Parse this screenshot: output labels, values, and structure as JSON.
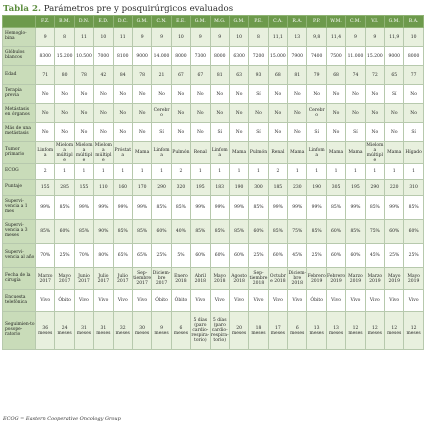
{
  "title": {
    "label": "Tabla 2.",
    "text": "Parámetros pre y posquirúrgicos evaluados"
  },
  "table": {
    "patients": [
      "F.Z.",
      "B.M.",
      "D.N.",
      "E.D.",
      "D.C.",
      "G.M.",
      "C.N.",
      "E.E.",
      "G.M.",
      "M.G.",
      "G.M.",
      "P.E.",
      "C.A.",
      "R.A.",
      "P.P.",
      "W.M.",
      "C.M.",
      "V.I.",
      "G.M.",
      "B.A."
    ],
    "rows": [
      {
        "label": "Hemoglo-bina",
        "height": 19,
        "values": [
          "9",
          "8",
          "11",
          "10",
          "11",
          "9",
          "9",
          "10",
          "9",
          "9",
          "10",
          "8",
          "11,1",
          "13",
          "9,8",
          "11,4",
          "9",
          "9",
          "11,9",
          "10"
        ]
      },
      {
        "label": "Glóbulos blancos",
        "height": 19,
        "values": [
          "8300",
          "15.200",
          "10.500",
          "7000",
          "8100",
          "9000",
          "14.000",
          "8000",
          "7300",
          "8000",
          "6300",
          "7200",
          "15.000",
          "7900",
          "7400",
          "7500",
          "11.000",
          "15.200",
          "9000",
          "8000"
        ]
      },
      {
        "label": "Edad",
        "height": 19,
        "values": [
          "71",
          "80",
          "78",
          "42",
          "84",
          "78",
          "21",
          "67",
          "67",
          "81",
          "63",
          "93",
          "68",
          "81",
          "79",
          "68",
          "74",
          "72",
          "65",
          "77"
        ]
      },
      {
        "label": "Terapia previa",
        "height": 19,
        "values": [
          "No",
          "No",
          "No",
          "No",
          "No",
          "No",
          "No",
          "No",
          "No",
          "No",
          "No",
          "Sí",
          "No",
          "No",
          "No",
          "No",
          "No",
          "No",
          "Sí",
          "No"
        ]
      },
      {
        "label": "Metástasis en órganos",
        "height": 19,
        "values": [
          "No",
          "No",
          "No",
          "No",
          "No",
          "No",
          "Cerebro",
          "No",
          "No",
          "No",
          "No",
          "No",
          "No",
          "No",
          "Cerebro",
          "No",
          "No",
          "No",
          "No",
          "No"
        ]
      },
      {
        "label": "Más de una metástasis",
        "height": 19,
        "values": [
          "No",
          "No",
          "No",
          "No",
          "No",
          "No",
          "Sí",
          "No",
          "No",
          "Sí",
          "No",
          "Sí",
          "No",
          "No",
          "Sí",
          "No",
          "Sí",
          "No",
          "No",
          "Sí"
        ]
      },
      {
        "label": "Tumor primario",
        "height": 22,
        "values": [
          "Linfoma",
          "Mieloma múltiple",
          "Mieloma múltiple",
          "Mieloma múltiple",
          "Próstata",
          "Mama",
          "Linfoma",
          "Pulmón",
          "Renal",
          "Linfoma",
          "Mama",
          "Pulmón",
          "Renal",
          "Mama",
          "Linfoma",
          "Mama",
          "Mama",
          "Mieloma múltiple",
          "Mama",
          "Hígado"
        ]
      },
      {
        "label": "ECOG",
        "height": 16,
        "values": [
          "2",
          "1",
          "1",
          "1",
          "1",
          "1",
          "1",
          "2",
          "1",
          "1",
          "1",
          "1",
          "2",
          "1",
          "1",
          "1",
          "1",
          "1",
          "1",
          "1"
        ]
      },
      {
        "label": "Puntaje",
        "height": 16,
        "values": [
          "155",
          "285",
          "155",
          "110",
          "160",
          "170",
          "290",
          "320",
          "195",
          "183",
          "190",
          "300",
          "185",
          "230",
          "190",
          "305",
          "195",
          "290",
          "220",
          "310"
        ]
      },
      {
        "label": "Supervi-vencia a 1 mes",
        "height": 24,
        "values": [
          "99%",
          "85%",
          "99%",
          "99%",
          "99%",
          "99%",
          "85%",
          "85%",
          "99%",
          "99%",
          "99%",
          "85%",
          "99%",
          "99%",
          "99%",
          "85%",
          "99%",
          "85%",
          "99%",
          "85%"
        ]
      },
      {
        "label": "Supervi-vencia a 3 meses",
        "height": 24,
        "values": [
          "85%",
          "60%",
          "85%",
          "90%",
          "85%",
          "85%",
          "60%",
          "40%",
          "85%",
          "85%",
          "85%",
          "60%",
          "85%",
          "75%",
          "85%",
          "60%",
          "85%",
          "75%",
          "60%",
          "60%"
        ]
      },
      {
        "label": "Supervi-vencia al año",
        "height": 24,
        "values": [
          "70%",
          "25%",
          "70%",
          "80%",
          "65%",
          "65%",
          "25%",
          "5%",
          "60%",
          "60%",
          "60%",
          "25%",
          "60%",
          "45%",
          "25%",
          "60%",
          "60%",
          "45%",
          "25%",
          "25%"
        ]
      },
      {
        "label": "Fecha de la cirugía",
        "height": 22,
        "values": [
          "Marzo 2017",
          "Mayo 2017",
          "Junio 2017",
          "Julio 2017",
          "Julio 2017",
          "Sep-tiembre 2017",
          "Diciem-bre 2017",
          "Enero 2018",
          "Abril 2018",
          "Mayo 2018",
          "Agosto 2018",
          "Sep-tiembre 2018",
          "Octubre 2018",
          "Diciem-bre 2018",
          "Febrero 2019",
          "Febrero 2019",
          "Marzo 2019",
          "Marzo 2019",
          "Mayo 2019",
          "Mayo 2019"
        ]
      },
      {
        "label": "Encuesta telefónica",
        "height": 22,
        "values": [
          "Vivo",
          "Óbito",
          "Vivo",
          "Vivo",
          "Vivo",
          "Vivo",
          "Óbito",
          "Óbito",
          "Vivo",
          "Vivo",
          "Vivo",
          "Vivo",
          "Vivo",
          "Vivo",
          "Óbito",
          "Vivo",
          "Vivo",
          "Vivo",
          "Vivo",
          "Vivo"
        ]
      },
      {
        "label": "Seguimien-to posope-ratorio",
        "height": 38,
        "values": [
          "36 meses",
          "24 meses",
          "31 meses",
          "31 meses",
          "32 meses",
          "30 meses",
          "9 meses",
          "6 meses",
          "5 días (paro cardio-respira-torio)",
          "5 días (paro cardio-respira-torio)",
          "20 meses",
          "18 meses",
          "17 meses",
          "6 meses",
          "13 meses",
          "13 meses",
          "12 meses",
          "12 meses",
          "12 meses",
          "12 meses"
        ]
      }
    ]
  },
  "footnote": "ECOG = Eastern Cooperative Oncology Group"
}
